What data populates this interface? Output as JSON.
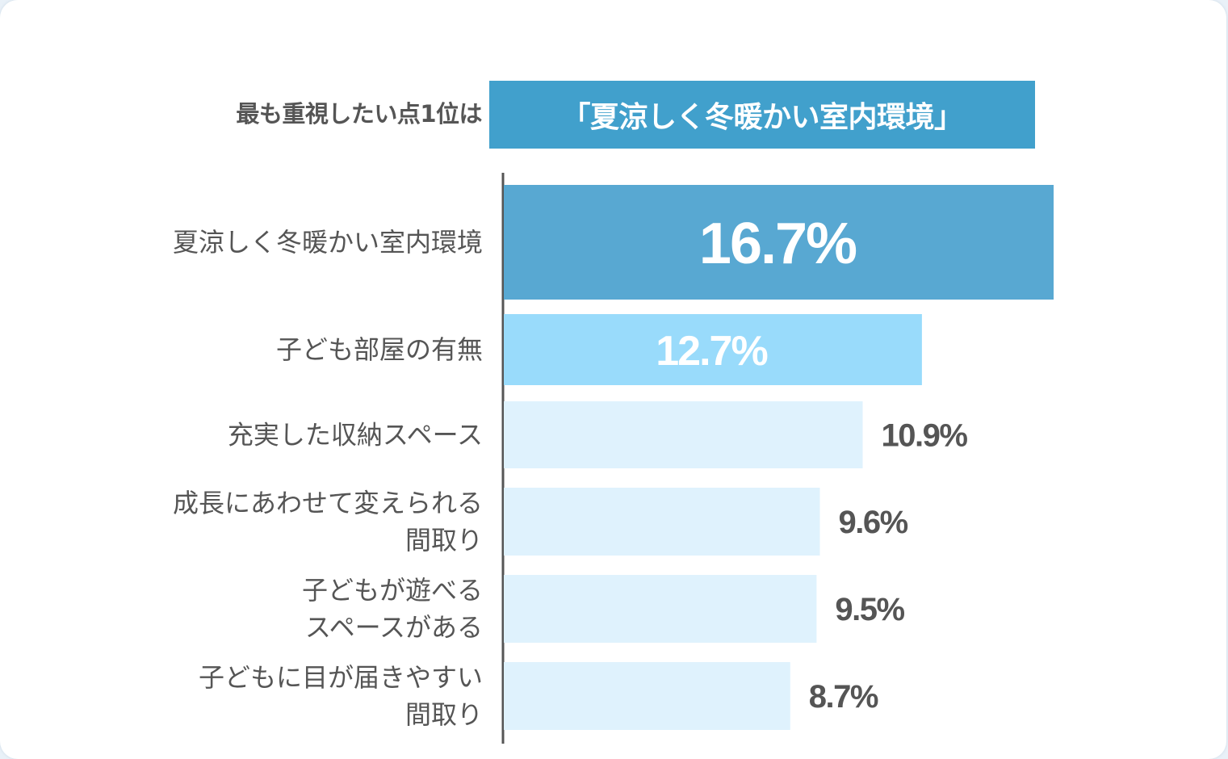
{
  "headline": {
    "label": "最も重視したい点1位は",
    "value": "「夏涼しく冬暖かい室内環境」",
    "box_color": "#41a0cc"
  },
  "chart_data": {
    "type": "bar",
    "orientation": "horizontal",
    "categories": [
      "夏涼しく冬暖かい室内環境",
      "子ども部屋の有無",
      "充実した収納スペース",
      "成長にあわせて変えられる\n間取り",
      "子どもが遊べる\nスペースがある",
      "子どもに目が届きやすい\n間取り"
    ],
    "values": [
      16.7,
      12.7,
      10.9,
      9.6,
      9.5,
      8.7
    ],
    "value_labels": [
      "16.7%",
      "12.7%",
      "10.9%",
      "9.6%",
      "9.5%",
      "8.7%"
    ],
    "unit": "%",
    "bar_colors": [
      "#58a8d2",
      "#99dbfb",
      "#dff2fd",
      "#dff2fd",
      "#dff2fd",
      "#dff2fd"
    ],
    "xlim": [
      0,
      16.7
    ],
    "grid": false,
    "title": "",
    "xlabel": "",
    "ylabel": ""
  }
}
